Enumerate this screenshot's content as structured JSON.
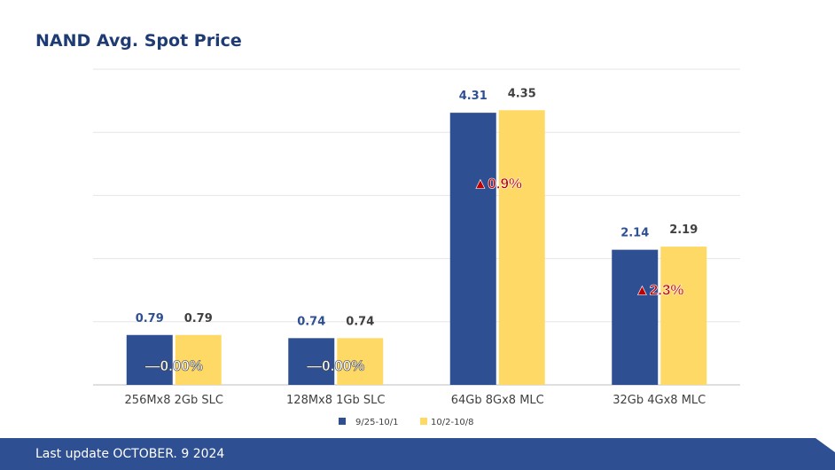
{
  "title": "NAND Avg. Spot Price",
  "footer": {
    "text": "Last update OCTOBER. 9  2024"
  },
  "colors": {
    "series1": "#2e5093",
    "series2": "#ffd966",
    "footer_bg": "#2e5093",
    "up_arrow": "#c00000",
    "grid": "#e6e6e6"
  },
  "chart_data": {
    "type": "bar",
    "categories": [
      "256Mx8 2Gb SLC",
      "128Mx8 1Gb SLC",
      "64Gb 8Gx8 MLC",
      "32Gb 4Gx8 MLC"
    ],
    "series": [
      {
        "name": "9/25-10/1",
        "values": [
          0.79,
          0.74,
          4.31,
          2.14
        ],
        "labels": [
          "0.79",
          "0.74",
          "4.31",
          "2.14"
        ]
      },
      {
        "name": "10/2-10/8",
        "values": [
          0.79,
          0.74,
          4.35,
          2.19
        ],
        "labels": [
          "0.79",
          "0.74",
          "4.35",
          "2.19"
        ]
      }
    ],
    "change_annotations": [
      "—0.00%",
      "—0.00%",
      "▲0.9%",
      "▲2.3%"
    ],
    "ylim": [
      0,
      5
    ],
    "grid": true,
    "legend": "bottom-center"
  }
}
